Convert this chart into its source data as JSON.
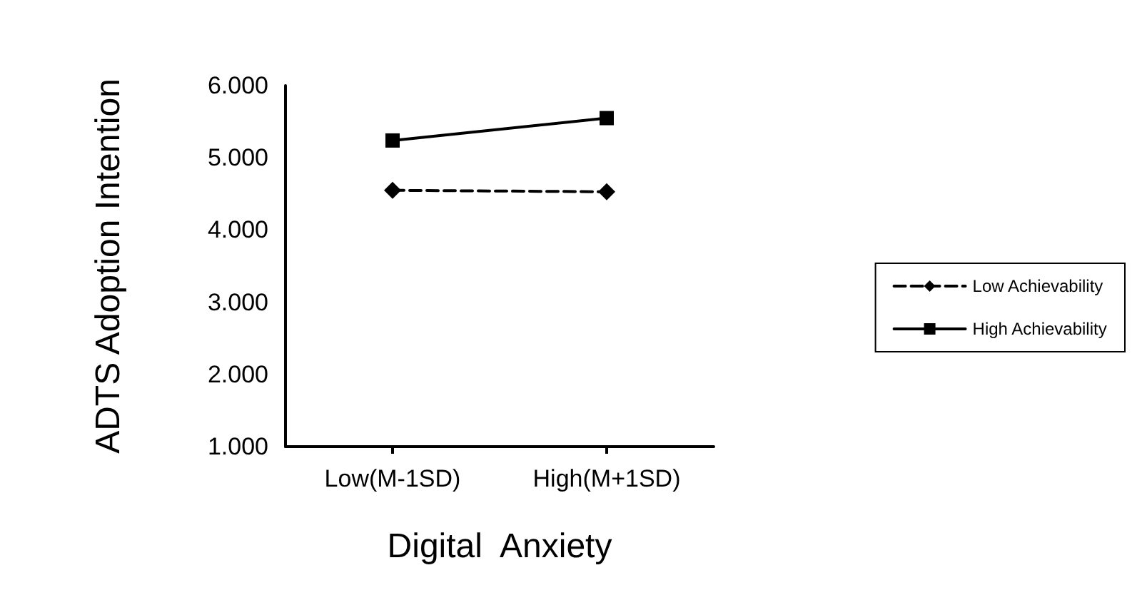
{
  "chart_data": {
    "type": "line",
    "xlabel": "Digital  Anxiety",
    "ylabel": "ADTS Adoption Intention",
    "categories": [
      "Low(M-1SD)",
      "High(M+1SD)"
    ],
    "series": [
      {
        "name": "Low Achievability",
        "color": "#000000",
        "values": [
          4.55,
          4.53
        ],
        "marker": "diamond",
        "line_style": "dashed"
      },
      {
        "name": "High Achievability",
        "color": "#000000",
        "values": [
          5.24,
          5.55
        ],
        "marker": "square",
        "line_style": "solid"
      }
    ],
    "ylim": [
      1,
      6
    ],
    "yticks": [
      {
        "value": 1,
        "label": "1.000"
      },
      {
        "value": 2,
        "label": "2.000"
      },
      {
        "value": 3,
        "label": "3.000"
      },
      {
        "value": 4,
        "label": "4.000"
      },
      {
        "value": 5,
        "label": "5.000"
      },
      {
        "value": 6,
        "label": "6.000"
      }
    ],
    "grid": false,
    "legend": "right"
  }
}
